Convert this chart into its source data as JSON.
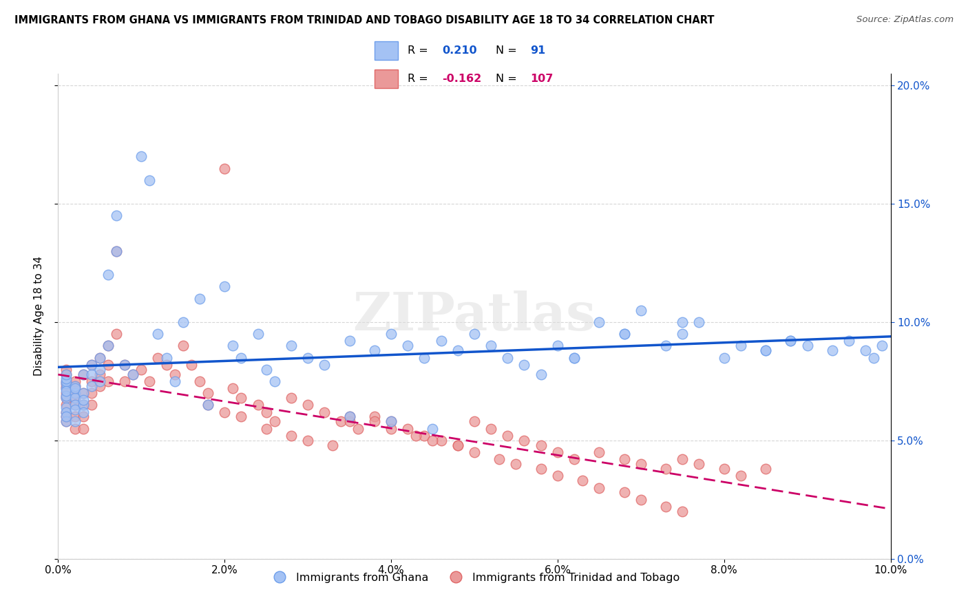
{
  "title": "IMMIGRANTS FROM GHANA VS IMMIGRANTS FROM TRINIDAD AND TOBAGO DISABILITY AGE 18 TO 34 CORRELATION CHART",
  "source": "Source: ZipAtlas.com",
  "ylabel": "Disability Age 18 to 34",
  "xmin": 0.0,
  "xmax": 0.1,
  "ymin": 0.0,
  "ymax": 0.205,
  "yticks": [
    0.0,
    0.05,
    0.1,
    0.15,
    0.2
  ],
  "xticks": [
    0.0,
    0.02,
    0.04,
    0.06,
    0.08,
    0.1
  ],
  "series1_color": "#a4c2f4",
  "series2_color": "#ea9999",
  "series1_edge": "#6d9eeb",
  "series2_edge": "#e06666",
  "line1_color": "#1155cc",
  "line2_color": "#cc0066",
  "watermark": "ZIPatlas",
  "label1": "Immigrants from Ghana",
  "label2": "Immigrants from Trinidad and Tobago",
  "r1": "0.210",
  "n1": "91",
  "r2": "-0.162",
  "n2": "107",
  "ghana_x": [
    0.001,
    0.001,
    0.001,
    0.001,
    0.001,
    0.001,
    0.001,
    0.001,
    0.001,
    0.001,
    0.001,
    0.001,
    0.002,
    0.002,
    0.002,
    0.002,
    0.002,
    0.002,
    0.002,
    0.003,
    0.003,
    0.003,
    0.003,
    0.003,
    0.004,
    0.004,
    0.004,
    0.005,
    0.005,
    0.005,
    0.006,
    0.006,
    0.007,
    0.007,
    0.008,
    0.009,
    0.01,
    0.011,
    0.012,
    0.013,
    0.014,
    0.015,
    0.017,
    0.018,
    0.02,
    0.021,
    0.022,
    0.024,
    0.025,
    0.026,
    0.028,
    0.03,
    0.032,
    0.035,
    0.038,
    0.04,
    0.042,
    0.044,
    0.046,
    0.048,
    0.05,
    0.052,
    0.054,
    0.056,
    0.058,
    0.06,
    0.062,
    0.065,
    0.068,
    0.07,
    0.073,
    0.075,
    0.077,
    0.08,
    0.082,
    0.085,
    0.088,
    0.09,
    0.093,
    0.095,
    0.097,
    0.098,
    0.099,
    0.085,
    0.088,
    0.062,
    0.068,
    0.075,
    0.035,
    0.04,
    0.045
  ],
  "ghana_y": [
    0.072,
    0.068,
    0.074,
    0.069,
    0.075,
    0.071,
    0.076,
    0.078,
    0.064,
    0.062,
    0.058,
    0.06,
    0.07,
    0.073,
    0.068,
    0.065,
    0.072,
    0.063,
    0.058,
    0.078,
    0.07,
    0.065,
    0.067,
    0.062,
    0.082,
    0.078,
    0.073,
    0.085,
    0.08,
    0.075,
    0.12,
    0.09,
    0.145,
    0.13,
    0.082,
    0.078,
    0.17,
    0.16,
    0.095,
    0.085,
    0.075,
    0.1,
    0.11,
    0.065,
    0.115,
    0.09,
    0.085,
    0.095,
    0.08,
    0.075,
    0.09,
    0.085,
    0.082,
    0.092,
    0.088,
    0.095,
    0.09,
    0.085,
    0.092,
    0.088,
    0.095,
    0.09,
    0.085,
    0.082,
    0.078,
    0.09,
    0.085,
    0.1,
    0.095,
    0.105,
    0.09,
    0.095,
    0.1,
    0.085,
    0.09,
    0.088,
    0.092,
    0.09,
    0.088,
    0.092,
    0.088,
    0.085,
    0.09,
    0.088,
    0.092,
    0.085,
    0.095,
    0.1,
    0.06,
    0.058,
    0.055
  ],
  "tt_x": [
    0.001,
    0.001,
    0.001,
    0.001,
    0.001,
    0.001,
    0.001,
    0.001,
    0.001,
    0.001,
    0.001,
    0.001,
    0.001,
    0.002,
    0.002,
    0.002,
    0.002,
    0.002,
    0.002,
    0.002,
    0.003,
    0.003,
    0.003,
    0.003,
    0.003,
    0.004,
    0.004,
    0.004,
    0.004,
    0.005,
    0.005,
    0.005,
    0.006,
    0.006,
    0.006,
    0.007,
    0.007,
    0.008,
    0.008,
    0.009,
    0.01,
    0.011,
    0.012,
    0.013,
    0.014,
    0.015,
    0.016,
    0.017,
    0.018,
    0.02,
    0.021,
    0.022,
    0.024,
    0.025,
    0.026,
    0.028,
    0.03,
    0.032,
    0.034,
    0.036,
    0.038,
    0.04,
    0.042,
    0.044,
    0.046,
    0.048,
    0.05,
    0.052,
    0.054,
    0.056,
    0.058,
    0.06,
    0.062,
    0.065,
    0.068,
    0.07,
    0.073,
    0.075,
    0.077,
    0.08,
    0.082,
    0.085,
    0.035,
    0.018,
    0.02,
    0.022,
    0.025,
    0.028,
    0.03,
    0.033,
    0.035,
    0.038,
    0.04,
    0.043,
    0.045,
    0.048,
    0.05,
    0.053,
    0.055,
    0.058,
    0.06,
    0.063,
    0.065,
    0.068,
    0.07,
    0.073,
    0.075
  ],
  "tt_y": [
    0.073,
    0.07,
    0.072,
    0.075,
    0.078,
    0.068,
    0.08,
    0.065,
    0.069,
    0.074,
    0.062,
    0.058,
    0.06,
    0.07,
    0.073,
    0.068,
    0.065,
    0.06,
    0.055,
    0.075,
    0.078,
    0.07,
    0.065,
    0.06,
    0.055,
    0.082,
    0.075,
    0.07,
    0.065,
    0.085,
    0.078,
    0.073,
    0.09,
    0.082,
    0.075,
    0.13,
    0.095,
    0.082,
    0.075,
    0.078,
    0.08,
    0.075,
    0.085,
    0.082,
    0.078,
    0.09,
    0.082,
    0.075,
    0.07,
    0.165,
    0.072,
    0.068,
    0.065,
    0.062,
    0.058,
    0.068,
    0.065,
    0.062,
    0.058,
    0.055,
    0.06,
    0.058,
    0.055,
    0.052,
    0.05,
    0.048,
    0.058,
    0.055,
    0.052,
    0.05,
    0.048,
    0.045,
    0.042,
    0.045,
    0.042,
    0.04,
    0.038,
    0.042,
    0.04,
    0.038,
    0.035,
    0.038,
    0.058,
    0.065,
    0.062,
    0.06,
    0.055,
    0.052,
    0.05,
    0.048,
    0.06,
    0.058,
    0.055,
    0.052,
    0.05,
    0.048,
    0.045,
    0.042,
    0.04,
    0.038,
    0.035,
    0.033,
    0.03,
    0.028,
    0.025,
    0.022,
    0.02
  ]
}
